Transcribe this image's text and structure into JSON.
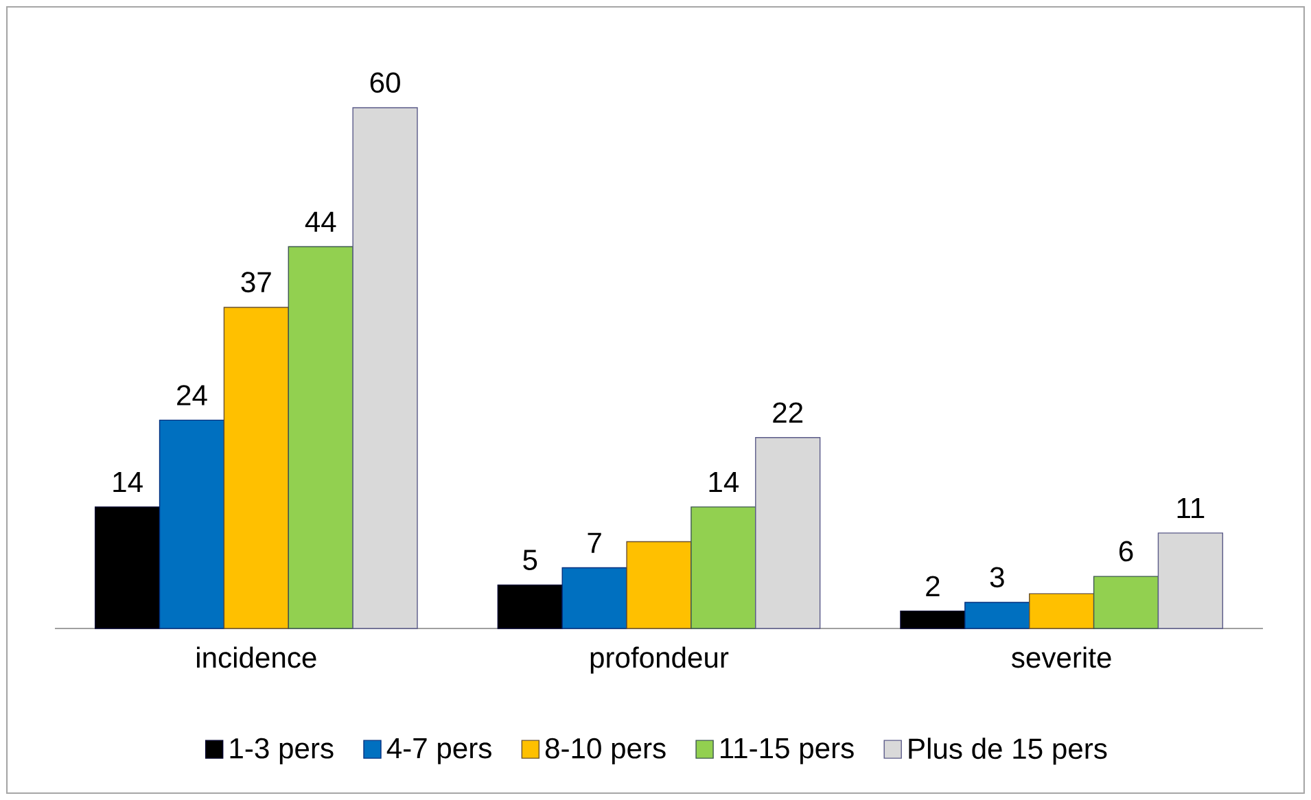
{
  "chart_data": {
    "type": "bar",
    "categories": [
      "incidence",
      "profondeur",
      "severite"
    ],
    "series": [
      {
        "name": "1-3 pers",
        "color": "#000000",
        "values": [
          14,
          5,
          2
        ],
        "value_labels": [
          "14",
          "5",
          "2"
        ]
      },
      {
        "name": "4-7 pers",
        "color": "#0070c0",
        "values": [
          24,
          7,
          3
        ],
        "value_labels": [
          "24",
          "7",
          "3"
        ]
      },
      {
        "name": "8-10 pers",
        "color": "#ffc000",
        "values": [
          37,
          10,
          4
        ],
        "value_labels": [
          "37",
          null,
          null
        ]
      },
      {
        "name": "11-15 pers",
        "color": "#92d050",
        "values": [
          44,
          14,
          6
        ],
        "value_labels": [
          "44",
          "14",
          "6"
        ]
      },
      {
        "name": "Plus de 15 pers",
        "color": "#d9d9d9",
        "values": [
          60,
          22,
          11
        ],
        "value_labels": [
          "60",
          "22",
          "11"
        ]
      }
    ],
    "legend": "bottom"
  }
}
